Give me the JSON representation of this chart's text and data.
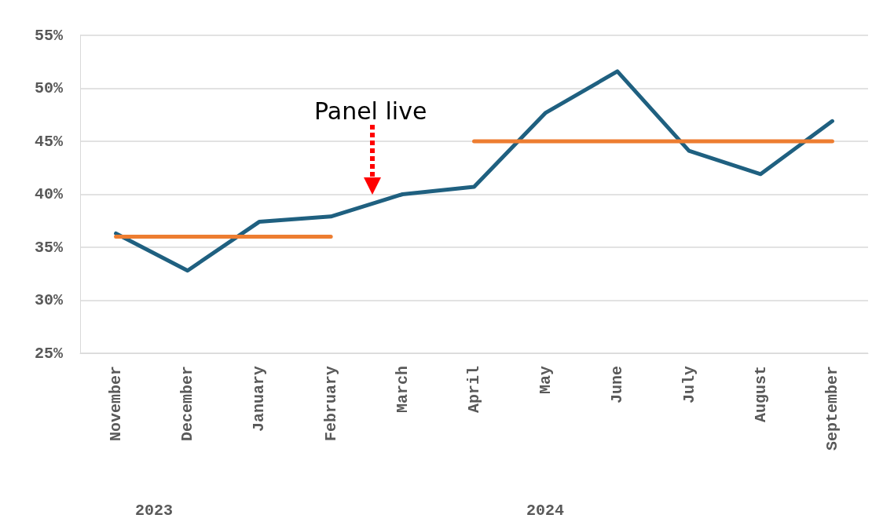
{
  "chart_data": {
    "type": "line",
    "categories": [
      "November",
      "December",
      "January",
      "February",
      "March",
      "April",
      "May",
      "June",
      "July",
      "August",
      "September"
    ],
    "series": [
      {
        "color": "#1f6080",
        "values": [
          36.3,
          32.8,
          37.4,
          37.9,
          40.0,
          40.7,
          47.7,
          51.6,
          44.1,
          41.9,
          46.9
        ]
      },
      {
        "color": "#ed7d31",
        "values": [
          36,
          36,
          36,
          36,
          null,
          null,
          null,
          null,
          null,
          null,
          null
        ]
      },
      {
        "color": "#ed7d31",
        "values": [
          null,
          null,
          null,
          null,
          null,
          45,
          45,
          45,
          45,
          45,
          45
        ]
      }
    ],
    "ylim": [
      25,
      55
    ],
    "yticks": [
      {
        "value": 25,
        "label": "25%"
      },
      {
        "value": 30,
        "label": "30%"
      },
      {
        "value": 35,
        "label": "35%"
      },
      {
        "value": 40,
        "label": "40%"
      },
      {
        "value": 45,
        "label": "45%"
      },
      {
        "value": 50,
        "label": "50%"
      },
      {
        "value": 55,
        "label": "55%"
      }
    ],
    "annotations": [
      "Panel live",
      "2023",
      "2024"
    ],
    "grid": "y"
  }
}
